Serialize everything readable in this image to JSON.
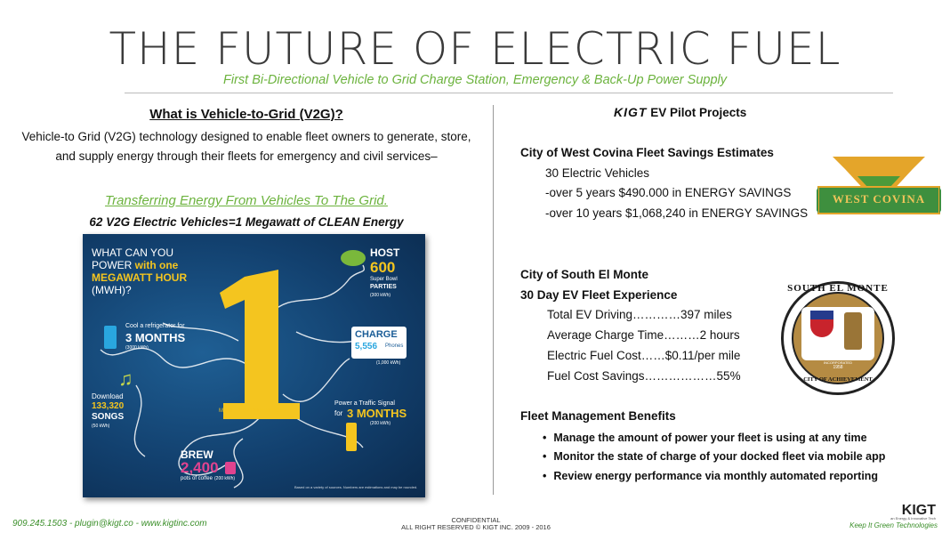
{
  "header": {
    "title": "THE FUTURE OF ELECTRIC FUEL",
    "subtitle": "First Bi-Directional Vehicle to Grid Charge Station, Emergency & Back-Up Power Supply"
  },
  "left": {
    "heading": "What is Vehicle-to-Grid (V2G)?",
    "desc_line1": "Vehicle-to Grid (V2G) technology designed to enable fleet owners to generate, store,",
    "desc_line2": "and supply energy through their fleets for emergency and civil services–",
    "transfer": "Transferring Energy From Vehicles To The Grid.",
    "megawatt": "62 V2G Electric Vehicles=1 Megawatt of CLEAN Energy"
  },
  "infographic": {
    "q_line1": "WHAT CAN YOU",
    "q_line2a": "POWER ",
    "q_line2b": "with one",
    "q_line3": "MEGAWATT HOUR",
    "q_line4": "(MWH)?",
    "big_number": "1",
    "mwh_caption": "MWH = 1,000 kilowatt hours",
    "fridge_pre": "Cool a refrigerator for",
    "fridge_val": "3 MONTHS",
    "fridge_unit": "(3000 kWh)",
    "host": "HOST",
    "host_val": "600",
    "host_sub1": "Super Bowl",
    "host_sub2": "PARTIES",
    "host_unit": "(300 kWh)",
    "charge": "CHARGE",
    "charge_val": "5,556",
    "charge_sub": "Phones",
    "charge_unit": "(1,000 kWh)",
    "download": "Download",
    "songs_val": "133,320",
    "songs": "SONGS",
    "songs_unit": "(50 kWh)",
    "traffic_pre1": "Power a Traffic Signal",
    "traffic_pre2": "for",
    "traffic_val": "3 MONTHS",
    "traffic_unit": "(200 kWh)",
    "brew": "BREW",
    "brew_val": "2,400",
    "brew_sub": "pots of coffee",
    "brew_unit": "(200 kWh)",
    "footnote": "Based on a variety of sources. Numbers are estimations and may be rounded."
  },
  "right": {
    "pilot_logo": "KIGT",
    "pilot_label": " EV Pilot Projects",
    "wc_title": "City of West Covina Fleet Savings Estimates",
    "wc_line1": "30 Electric Vehicles",
    "wc_line2": "-over 5 years $490.000 in ENERGY SAVINGS",
    "wc_line3": "-over 10 years $1,068,240 in ENERGY SAVINGS",
    "wc_logo": "WEST COVINA",
    "sem_title": "City of South El Monte",
    "sem_sub": "30 Day EV Fleet Experience",
    "sem_line1": "Total EV Driving…………397 miles",
    "sem_line2": "Average Charge Time………2 hours",
    "sem_line3": "Electric Fuel Cost……$0.11/per mile",
    "sem_line4": "Fuel Cost Savings………………55%",
    "seal_top": "SOUTH EL MONTE",
    "seal_bottom": "CITY OF ACHIEVEMENT",
    "seal_inc1": "INCORPORATED",
    "seal_inc2": "1958",
    "fleet_title": "Fleet Management Benefits",
    "benefits": [
      "Manage the amount of power your fleet is using at any time",
      "Monitor the state of charge of your docked fleet via mobile app",
      "Review energy performance via monthly automated reporting"
    ]
  },
  "footer": {
    "contact": "909.245.1503  -  plugin@kigt.co  -  www.kigtinc.com",
    "conf1": "CONFIDENTIAL",
    "conf2": "ALL RIGHT RESERVED © KIGT INC. 2009 - 2016",
    "logo": "KIGT",
    "logo_tag": "an Energy & Innovative Tech",
    "tagline": "Keep It Green Technologies"
  },
  "colors": {
    "accent_green": "#6cb33e",
    "infographic_bg": "#12406e",
    "highlight_yellow": "#f4c51f",
    "brew_pink": "#e0438f"
  }
}
